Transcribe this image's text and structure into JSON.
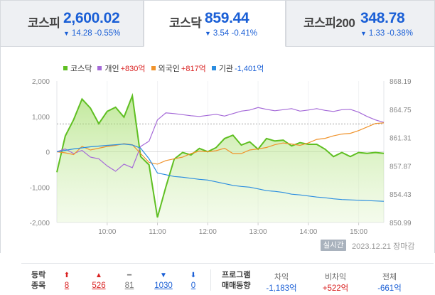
{
  "tabs": [
    {
      "name": "코스피",
      "value": "2,600.02",
      "change": "14.28 -0.55%",
      "active": false
    },
    {
      "name": "코스닥",
      "value": "859.44",
      "change": "3.54 -0.41%",
      "active": true
    },
    {
      "name": "코스피200",
      "value": "348.78",
      "change": "1.33 -0.38%",
      "active": false
    }
  ],
  "legend": [
    {
      "label": "코스닥",
      "num": "",
      "color": "#5fbf22"
    },
    {
      "label": "개인",
      "num": "+830억",
      "color": "#a56ad8"
    },
    {
      "label": "외국인",
      "num": "+817억",
      "color": "#f0932b"
    },
    {
      "label": "기관",
      "num": "-1,401억",
      "color": "#2b8de0",
      "neg": true
    }
  ],
  "footer": {
    "realtime": "실시간",
    "date": "2023.12.21 장마감"
  },
  "stats": {
    "header1": "등락",
    "header2": "종목",
    "items": [
      {
        "icon": "⬆",
        "count": "8",
        "cls": "red"
      },
      {
        "icon": "▲",
        "count": "526",
        "cls": "red"
      },
      {
        "icon": "━",
        "count": "81",
        "cls": "gray"
      },
      {
        "icon": "▼",
        "count": "1030",
        "cls": "blue"
      },
      {
        "icon": "⬇",
        "count": "0",
        "cls": "blue"
      }
    ],
    "program_header1": "프로그램",
    "program_header2": "매매동향",
    "program": [
      {
        "label": "차익",
        "value": "-1,183억",
        "cls": "blue"
      },
      {
        "label": "비차익",
        "value": "+522억",
        "cls": "red"
      },
      {
        "label": "전체",
        "value": "-661억",
        "cls": "blue"
      }
    ]
  },
  "chart_data": {
    "type": "line",
    "left_axis": {
      "ticks": [
        "2,000",
        "1,000",
        "0",
        "-1,000",
        "-2,000"
      ],
      "range": [
        -2000,
        2000
      ]
    },
    "right_axis": {
      "ticks": [
        "868.19",
        "864.75",
        "861.31",
        "857.87",
        "854.43",
        "850.99"
      ],
      "range": [
        850.99,
        868.19
      ]
    },
    "x_ticks": [
      "10:00",
      "11:00",
      "12:00",
      "13:00",
      "14:00",
      "15:00"
    ],
    "x_range": [
      "09:00",
      "15:30"
    ],
    "reference_line_right": 862.98,
    "series": [
      {
        "name": "코스닥",
        "axis": "right",
        "color": "#5fbf22",
        "fill": true,
        "x": [
          "09:00",
          "09:10",
          "09:20",
          "09:30",
          "09:40",
          "09:50",
          "10:00",
          "10:10",
          "10:20",
          "10:30",
          "10:40",
          "10:50",
          "11:00",
          "11:10",
          "11:20",
          "11:30",
          "11:40",
          "11:50",
          "12:00",
          "12:10",
          "12:20",
          "12:30",
          "12:40",
          "12:50",
          "13:00",
          "13:10",
          "13:20",
          "13:30",
          "13:40",
          "13:50",
          "14:00",
          "14:10",
          "14:20",
          "14:30",
          "14:40",
          "14:50",
          "15:00",
          "15:10",
          "15:20",
          "15:30"
        ],
        "values": [
          857.1,
          861.5,
          863.5,
          866.0,
          864.9,
          863.0,
          864.5,
          865.0,
          863.8,
          866.4,
          859.0,
          858.0,
          851.6,
          855.3,
          858.7,
          859.5,
          859.2,
          860.0,
          859.6,
          860.1,
          861.2,
          861.6,
          860.4,
          860.8,
          859.9,
          861.2,
          860.9,
          861.0,
          860.3,
          860.7,
          860.5,
          860.5,
          859.9,
          859.0,
          859.5,
          859.0,
          859.5,
          859.4,
          859.5,
          859.4
        ]
      },
      {
        "name": "개인",
        "axis": "left",
        "color": "#a56ad8",
        "x": [
          "09:00",
          "09:10",
          "09:20",
          "09:30",
          "09:40",
          "09:50",
          "10:00",
          "10:10",
          "10:20",
          "10:30",
          "10:40",
          "10:50",
          "11:00",
          "11:10",
          "11:20",
          "11:30",
          "11:40",
          "11:50",
          "12:00",
          "12:10",
          "12:20",
          "12:30",
          "12:40",
          "12:50",
          "13:00",
          "13:10",
          "13:20",
          "13:30",
          "13:40",
          "13:50",
          "14:00",
          "14:10",
          "14:20",
          "14:30",
          "14:40",
          "14:50",
          "15:00",
          "15:10",
          "15:20",
          "15:30"
        ],
        "values": [
          0,
          80,
          -50,
          40,
          -150,
          -200,
          -400,
          -550,
          -350,
          -450,
          150,
          300,
          900,
          1100,
          1080,
          1050,
          1020,
          1000,
          1030,
          1060,
          1010,
          1080,
          1150,
          1180,
          1250,
          1200,
          1160,
          1190,
          1220,
          1150,
          1180,
          1220,
          1170,
          1140,
          1190,
          1200,
          1120,
          1000,
          900,
          830
        ]
      },
      {
        "name": "외국인",
        "axis": "left",
        "color": "#f0932b",
        "x": [
          "09:00",
          "09:10",
          "09:20",
          "09:30",
          "09:40",
          "09:50",
          "10:00",
          "10:10",
          "10:20",
          "10:30",
          "10:40",
          "10:50",
          "11:00",
          "11:10",
          "11:20",
          "11:30",
          "11:40",
          "11:50",
          "12:00",
          "12:10",
          "12:20",
          "12:30",
          "12:40",
          "12:50",
          "13:00",
          "13:10",
          "13:20",
          "13:30",
          "13:40",
          "13:50",
          "14:00",
          "14:10",
          "14:20",
          "14:30",
          "14:40",
          "14:50",
          "15:00",
          "15:10",
          "15:20",
          "15:30"
        ],
        "values": [
          0,
          -30,
          -80,
          150,
          50,
          100,
          150,
          180,
          230,
          200,
          -50,
          -300,
          -350,
          -250,
          -200,
          -150,
          -50,
          20,
          0,
          30,
          100,
          -50,
          -50,
          50,
          80,
          120,
          200,
          250,
          220,
          180,
          250,
          350,
          380,
          450,
          500,
          520,
          600,
          700,
          800,
          817
        ]
      },
      {
        "name": "기관",
        "axis": "left",
        "color": "#2b8de0",
        "x": [
          "09:00",
          "09:10",
          "09:20",
          "09:30",
          "09:40",
          "09:50",
          "10:00",
          "10:10",
          "10:20",
          "10:30",
          "10:40",
          "10:50",
          "11:00",
          "11:10",
          "11:20",
          "11:30",
          "11:40",
          "11:50",
          "12:00",
          "12:10",
          "12:20",
          "12:30",
          "12:40",
          "12:50",
          "13:00",
          "13:10",
          "13:20",
          "13:30",
          "13:40",
          "13:50",
          "14:00",
          "14:10",
          "14:20",
          "14:30",
          "14:40",
          "14:50",
          "15:00",
          "15:10",
          "15:20",
          "15:30"
        ],
        "values": [
          0,
          40,
          80,
          110,
          140,
          160,
          180,
          200,
          220,
          190,
          100,
          -200,
          -600,
          -650,
          -700,
          -720,
          -750,
          -780,
          -800,
          -850,
          -900,
          -950,
          -980,
          -1000,
          -1050,
          -1100,
          -1120,
          -1150,
          -1200,
          -1220,
          -1250,
          -1280,
          -1300,
          -1330,
          -1350,
          -1360,
          -1370,
          -1380,
          -1390,
          -1401
        ]
      }
    ]
  }
}
